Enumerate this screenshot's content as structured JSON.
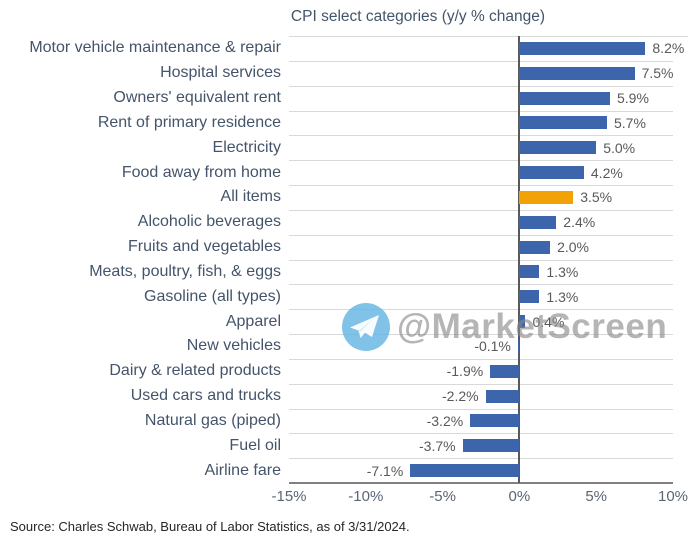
{
  "title": "CPI select categories (y/y % change)",
  "source_note": "Source: Charles Schwab, Bureau of Labor Statistics, as of 3/31/2024.",
  "watermark": {
    "text": "@MarketScreen",
    "icon": "telegram-icon"
  },
  "colors": {
    "bar": "#3D65AC",
    "bar_highlight": "#F1A207",
    "gridline": "#D9D9D9",
    "zero_line": "#595959",
    "axis_line": "#808080",
    "category_text": "#44546A",
    "value_text": "#595959",
    "tick_text": "#5A6575",
    "title_text": "#44546A",
    "watermark_icon": "#64B5E3"
  },
  "chart_data": {
    "type": "bar",
    "orientation": "horizontal",
    "title": "CPI select categories (y/y % change)",
    "categories": [
      "Motor vehicle maintenance & repair",
      "Hospital services",
      "Owners' equivalent rent",
      "Rent of primary residence",
      "Electricity",
      "Food away from home",
      "All items",
      "Alcoholic beverages",
      "Fruits and vegetables",
      "Meats, poultry, fish, & eggs",
      "Gasoline (all types)",
      "Apparel",
      "New vehicles",
      "Dairy & related products",
      "Used cars and trucks",
      "Natural gas (piped)",
      "Fuel oil",
      "Airline fare"
    ],
    "values": [
      8.2,
      7.5,
      5.9,
      5.7,
      5.0,
      4.2,
      3.5,
      2.4,
      2.0,
      1.3,
      1.3,
      0.4,
      -0.1,
      -1.9,
      -2.2,
      -3.2,
      -3.7,
      -7.1
    ],
    "value_labels": [
      "8.2%",
      "7.5%",
      "5.9%",
      "5.7%",
      "5.0%",
      "4.2%",
      "3.5%",
      "2.4%",
      "2.0%",
      "1.3%",
      "1.3%",
      "0.4%",
      "-0.1%",
      "-1.9%",
      "-2.2%",
      "-3.2%",
      "-3.7%",
      "-7.1%"
    ],
    "highlight_index": 6,
    "highlight_category": "All items",
    "xlim": [
      -15,
      10
    ],
    "tick_values": [
      -15,
      -10,
      -5,
      0,
      5,
      10
    ],
    "tick_labels": [
      "-15%",
      "-10%",
      "-5%",
      "0%",
      "5%",
      "10%"
    ],
    "grid": "row-separators-on",
    "legend": "none"
  }
}
